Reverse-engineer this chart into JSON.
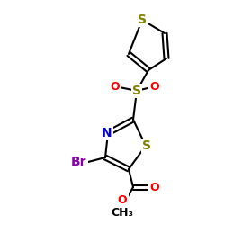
{
  "bg_color": "#ffffff",
  "bond_color": "#000000",
  "bond_lw": 1.5,
  "colors": {
    "S": "#808000",
    "N": "#0000cc",
    "O": "#ff0000",
    "Br": "#8800aa",
    "C": "#000000"
  },
  "font_size": 9,
  "font_size_small": 8
}
